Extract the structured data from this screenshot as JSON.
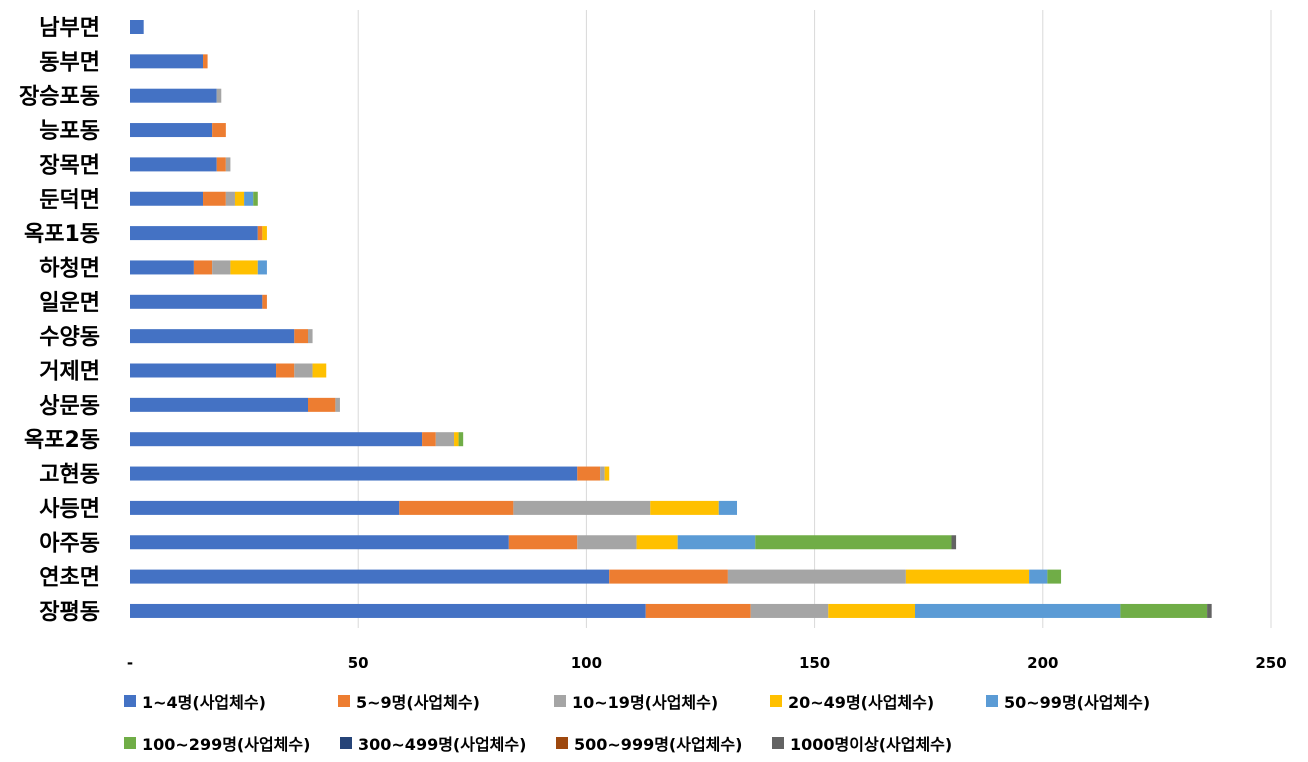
{
  "chart_data": {
    "type": "bar",
    "orientation": "horizontal",
    "stacked": true,
    "title": "",
    "xlabel": "",
    "ylabel": "",
    "xlim": [
      0,
      250
    ],
    "x_ticks": [
      0,
      50,
      100,
      150,
      200,
      250
    ],
    "x_tick_labels": [
      "-",
      "50",
      "100",
      "150",
      "200",
      "250"
    ],
    "grid": "vertical",
    "legend_position": "bottom",
    "categories": [
      "남부면",
      "동부면",
      "장승포동",
      "능포동",
      "장목면",
      "둔덕면",
      "옥포1동",
      "하청면",
      "일운면",
      "수양동",
      "거제면",
      "상문동",
      "옥포2동",
      "고현동",
      "사등면",
      "아주동",
      "연초면",
      "장평동"
    ],
    "series": [
      {
        "name": "1~4명(사업체수)",
        "color": "#4472C4",
        "values": [
          3,
          16,
          19,
          18,
          19,
          16,
          28,
          14,
          29,
          36,
          32,
          39,
          64,
          98,
          59,
          83,
          105,
          113
        ]
      },
      {
        "name": "5~9명(사업체수)",
        "color": "#ED7D31",
        "values": [
          0,
          1,
          0,
          3,
          2,
          5,
          1,
          4,
          1,
          3,
          4,
          6,
          3,
          5,
          25,
          15,
          26,
          23
        ]
      },
      {
        "name": "10~19명(사업체수)",
        "color": "#A5A5A5",
        "values": [
          0,
          0,
          1,
          0,
          1,
          2,
          0,
          4,
          0,
          1,
          4,
          1,
          4,
          1,
          30,
          13,
          39,
          17
        ]
      },
      {
        "name": "20~49명(사업체수)",
        "color": "#FFC000",
        "values": [
          0,
          0,
          0,
          0,
          0,
          2,
          1,
          6,
          0,
          0,
          3,
          0,
          1,
          1,
          15,
          9,
          27,
          19
        ]
      },
      {
        "name": "50~99명(사업체수)",
        "color": "#5B9BD5",
        "values": [
          0,
          0,
          0,
          0,
          0,
          2,
          0,
          2,
          0,
          0,
          0,
          0,
          0,
          0,
          4,
          17,
          4,
          45
        ]
      },
      {
        "name": "100~299명(사업체수)",
        "color": "#70AD47",
        "values": [
          0,
          0,
          0,
          0,
          0,
          1,
          0,
          0,
          0,
          0,
          0,
          0,
          1,
          0,
          0,
          43,
          3,
          19
        ]
      },
      {
        "name": "300~499명(사업체수)",
        "color": "#264478",
        "values": [
          0,
          0,
          0,
          0,
          0,
          0,
          0,
          0,
          0,
          0,
          0,
          0,
          0,
          0,
          0,
          0,
          0,
          0
        ]
      },
      {
        "name": "500~999명(사업체수)",
        "color": "#9E480E",
        "values": [
          0,
          0,
          0,
          0,
          0,
          0,
          0,
          0,
          0,
          0,
          0,
          0,
          0,
          0,
          0,
          0,
          0,
          0
        ]
      },
      {
        "name": "1000명이상(사업체수)",
        "color": "#636363",
        "values": [
          0,
          0,
          0,
          0,
          0,
          0,
          0,
          0,
          0,
          0,
          0,
          0,
          0,
          0,
          0,
          1,
          0,
          1
        ]
      }
    ]
  }
}
